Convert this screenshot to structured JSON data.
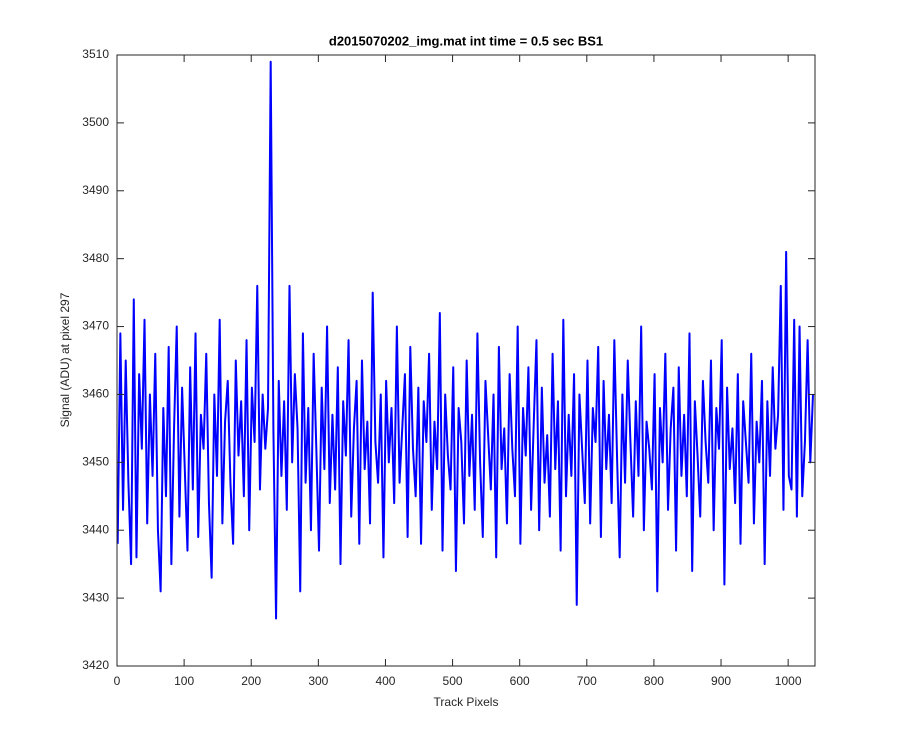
{
  "chart_data": {
    "type": "line",
    "title": "d2015070202_img.mat int time = 0.5 sec   BS1",
    "xlabel": "Track Pixels",
    "ylabel": "Signal (ADU) at pixel 297",
    "xlim": [
      0,
      1040
    ],
    "xticks": [
      0,
      100,
      200,
      300,
      400,
      500,
      600,
      700,
      800,
      900,
      1000
    ],
    "ylim": [
      3420,
      3510
    ],
    "yticks": [
      3420,
      3430,
      3440,
      3450,
      3460,
      3470,
      3480,
      3490,
      3500,
      3510
    ],
    "grid": false,
    "x": [
      1,
      5,
      9,
      13,
      17,
      21,
      25,
      29,
      33,
      37,
      41,
      45,
      49,
      53,
      57,
      61,
      65,
      69,
      73,
      77,
      81,
      85,
      89,
      93,
      97,
      101,
      105,
      109,
      113,
      117,
      121,
      125,
      129,
      133,
      137,
      141,
      145,
      149,
      153,
      157,
      161,
      165,
      169,
      173,
      177,
      181,
      185,
      189,
      193,
      197,
      201,
      205,
      209,
      213,
      217,
      221,
      225,
      229,
      233,
      237,
      241,
      245,
      249,
      253,
      257,
      261,
      265,
      269,
      273,
      277,
      281,
      285,
      289,
      293,
      297,
      301,
      305,
      309,
      313,
      317,
      321,
      325,
      329,
      333,
      337,
      341,
      345,
      349,
      353,
      357,
      361,
      365,
      369,
      373,
      377,
      381,
      385,
      389,
      393,
      397,
      401,
      405,
      409,
      413,
      417,
      421,
      425,
      429,
      433,
      437,
      441,
      445,
      449,
      453,
      457,
      461,
      465,
      469,
      473,
      477,
      481,
      485,
      489,
      493,
      497,
      501,
      505,
      509,
      513,
      517,
      521,
      525,
      529,
      533,
      537,
      541,
      545,
      549,
      553,
      557,
      561,
      565,
      569,
      573,
      577,
      581,
      585,
      589,
      593,
      597,
      601,
      605,
      609,
      613,
      617,
      621,
      625,
      629,
      633,
      637,
      641,
      645,
      649,
      653,
      657,
      661,
      665,
      669,
      673,
      677,
      681,
      685,
      689,
      693,
      697,
      701,
      705,
      709,
      713,
      717,
      721,
      725,
      729,
      733,
      737,
      741,
      745,
      749,
      753,
      757,
      761,
      765,
      769,
      773,
      777,
      781,
      785,
      789,
      793,
      797,
      801,
      805,
      809,
      813,
      817,
      821,
      825,
      829,
      833,
      837,
      841,
      845,
      849,
      853,
      857,
      861,
      865,
      869,
      873,
      877,
      881,
      885,
      889,
      893,
      897,
      901,
      905,
      909,
      913,
      917,
      921,
      925,
      929,
      933,
      937,
      941,
      945,
      949,
      953,
      957,
      961,
      965,
      969,
      973,
      977,
      981,
      985,
      989,
      993,
      997,
      1001,
      1005,
      1009,
      1013,
      1017,
      1021,
      1025,
      1029,
      1033,
      1037
    ],
    "series": [
      {
        "color": "#0000ff",
        "values": [
          3438,
          3469,
          3443,
          3465,
          3447,
          3435,
          3474,
          3436,
          3463,
          3452,
          3471,
          3441,
          3460,
          3448,
          3466,
          3440,
          3431,
          3458,
          3445,
          3467,
          3435,
          3455,
          3470,
          3442,
          3461,
          3449,
          3437,
          3464,
          3446,
          3469,
          3439,
          3457,
          3452,
          3466,
          3444,
          3433,
          3460,
          3448,
          3471,
          3441,
          3456,
          3462,
          3447,
          3438,
          3465,
          3451,
          3459,
          3445,
          3468,
          3440,
          3461,
          3453,
          3476,
          3446,
          3460,
          3452,
          3458,
          3509,
          3455,
          3427,
          3462,
          3448,
          3459,
          3443,
          3476,
          3450,
          3463,
          3455,
          3431,
          3469,
          3447,
          3458,
          3440,
          3466,
          3452,
          3437,
          3461,
          3449,
          3470,
          3444,
          3457,
          3446,
          3464,
          3435,
          3459,
          3451,
          3468,
          3442,
          3455,
          3462,
          3438,
          3465,
          3449,
          3456,
          3441,
          3475,
          3453,
          3447,
          3460,
          3436,
          3462,
          3450,
          3458,
          3444,
          3470,
          3447,
          3455,
          3463,
          3439,
          3467,
          3452,
          3445,
          3461,
          3438,
          3459,
          3453,
          3466,
          3443,
          3456,
          3449,
          3472,
          3437,
          3460,
          3451,
          3446,
          3464,
          3434,
          3458,
          3453,
          3441,
          3465,
          3448,
          3457,
          3443,
          3469,
          3450,
          3439,
          3462,
          3454,
          3446,
          3460,
          3436,
          3467,
          3449,
          3455,
          3441,
          3463,
          3452,
          3445,
          3470,
          3438,
          3458,
          3451,
          3464,
          3443,
          3456,
          3468,
          3440,
          3461,
          3447,
          3454,
          3442,
          3466,
          3449,
          3459,
          3437,
          3471,
          3445,
          3457,
          3448,
          3463,
          3429,
          3460,
          3452,
          3444,
          3465,
          3441,
          3458,
          3453,
          3467,
          3439,
          3462,
          3449,
          3457,
          3444,
          3468,
          3451,
          3436,
          3460,
          3447,
          3465,
          3453,
          3442,
          3459,
          3448,
          3470,
          3440,
          3456,
          3452,
          3446,
          3463,
          3431,
          3458,
          3450,
          3466,
          3443,
          3455,
          3461,
          3437,
          3464,
          3448,
          3457,
          3445,
          3469,
          3434,
          3459,
          3451,
          3442,
          3462,
          3453,
          3447,
          3465,
          3440,
          3458,
          3452,
          3468,
          3432,
          3461,
          3449,
          3455,
          3444,
          3463,
          3438,
          3459,
          3453,
          3447,
          3466,
          3441,
          3456,
          3450,
          3462,
          3435,
          3459,
          3448,
          3464,
          3452,
          3457,
          3476,
          3443,
          3481,
          3448,
          3446,
          3471,
          3442,
          3470,
          3445,
          3453,
          3468,
          3450,
          3460
        ]
      }
    ]
  }
}
